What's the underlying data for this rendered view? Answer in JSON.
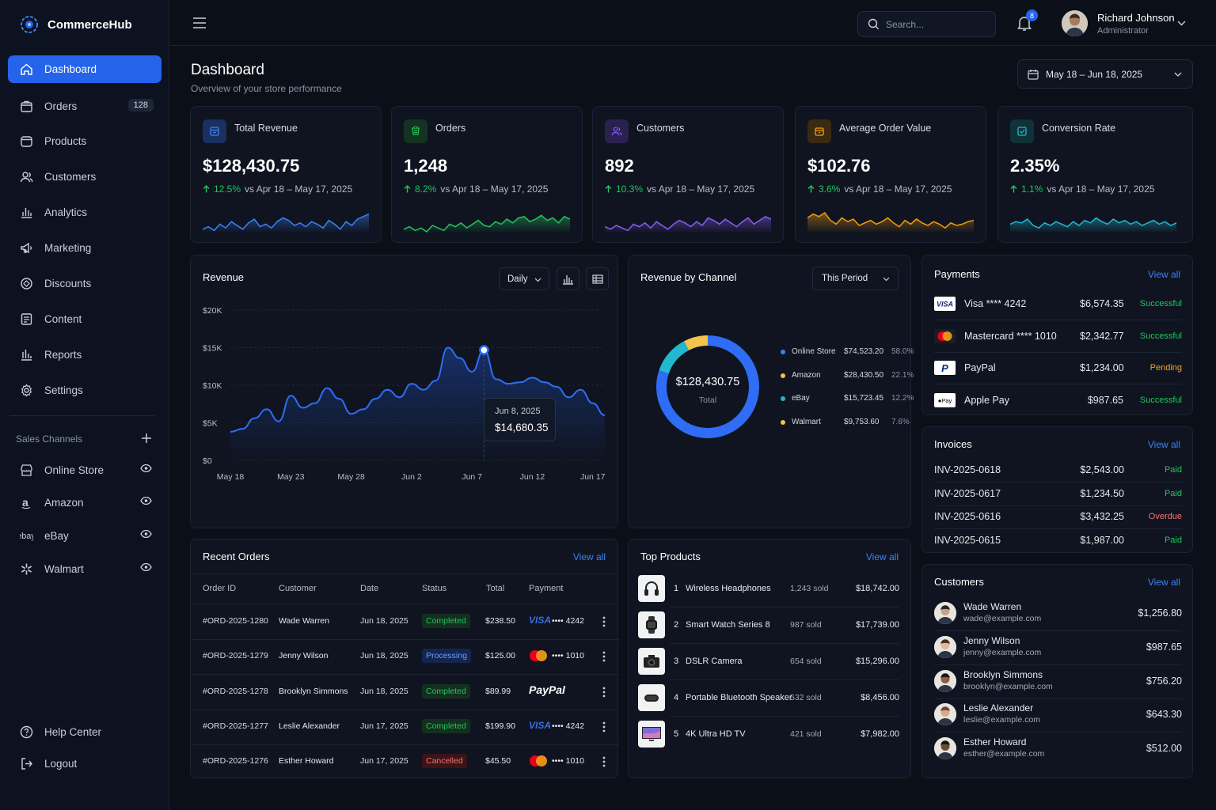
{
  "brand": {
    "name": "CommerceHub"
  },
  "sidebar": {
    "items": [
      {
        "label": "Dashboard",
        "icon": "home-icon"
      },
      {
        "label": "Orders",
        "icon": "bag-icon",
        "badge": "128"
      },
      {
        "label": "Products",
        "icon": "box-icon"
      },
      {
        "label": "Customers",
        "icon": "users-icon"
      },
      {
        "label": "Analytics",
        "icon": "bar-chart-icon"
      },
      {
        "label": "Marketing",
        "icon": "megaphone-icon"
      },
      {
        "label": "Discounts",
        "icon": "tag-icon"
      },
      {
        "label": "Content",
        "icon": "document-icon"
      },
      {
        "label": "Reports",
        "icon": "report-icon"
      },
      {
        "label": "Settings",
        "icon": "gear-icon"
      }
    ],
    "channels_title": "Sales Channels",
    "channels": [
      {
        "label": "Online Store"
      },
      {
        "label": "Amazon"
      },
      {
        "label": "eBay",
        "logo": "ebay"
      },
      {
        "label": "Walmart"
      }
    ],
    "help": "Help Center",
    "logout": "Logout"
  },
  "topbar": {
    "search_placeholder": "Search...",
    "notifications": "8",
    "user_name": "Richard Johnson",
    "user_role": "Administrator"
  },
  "page": {
    "title": "Dashboard",
    "subtitle": "Overview of your store performance",
    "date_range": "May 18 – Jun 18, 2025"
  },
  "kpis": [
    {
      "title": "Total Revenue",
      "value": "$128,430.75",
      "delta": "12.5%",
      "compare": "vs Apr 18 – May 17, 2025",
      "color": "#3b82f6"
    },
    {
      "title": "Orders",
      "value": "1,248",
      "delta": "8.2%",
      "compare": "vs Apr 18 – May 17, 2025",
      "color": "#22c55e"
    },
    {
      "title": "Customers",
      "value": "892",
      "delta": "10.3%",
      "compare": "vs Apr 18 – May 17, 2025",
      "color": "#8b5cf6"
    },
    {
      "title": "Average Order Value",
      "value": "$102.76",
      "delta": "3.6%",
      "compare": "vs Apr 18 – May 17, 2025",
      "color": "#f59e0b"
    },
    {
      "title": "Conversion Rate",
      "value": "2.35%",
      "delta": "1.1%",
      "compare": "vs Apr 18 – May 17, 2025",
      "color": "#22b8cf"
    }
  ],
  "revenue": {
    "title": "Revenue",
    "period": "Daily",
    "tooltip_date": "Jun 8, 2025",
    "tooltip_value": "$14,680.35"
  },
  "chart_data": {
    "type": "area",
    "x": [
      "May 18",
      "May 19",
      "May 20",
      "May 21",
      "May 22",
      "May 23",
      "May 24",
      "May 25",
      "May 26",
      "May 27",
      "May 28",
      "May 29",
      "May 30",
      "May 31",
      "Jun 1",
      "Jun 2",
      "Jun 3",
      "Jun 4",
      "Jun 5",
      "Jun 6",
      "Jun 7",
      "Jun 8",
      "Jun 9",
      "Jun 10",
      "Jun 11",
      "Jun 12",
      "Jun 13",
      "Jun 14",
      "Jun 15",
      "Jun 16",
      "Jun 17",
      "Jun 18"
    ],
    "series": [
      {
        "values": [
          3800,
          4200,
          5600,
          6800,
          5200,
          8600,
          7000,
          7600,
          9600,
          8200,
          6200,
          6800,
          8200,
          9400,
          8400,
          10200,
          9400,
          10600,
          15000,
          13600,
          11800,
          14680,
          10800,
          10200,
          10400,
          11000,
          10400,
          9800,
          8400,
          9400,
          7600,
          6000
        ]
      }
    ],
    "x_ticks": [
      "May 18",
      "May 23",
      "May 28",
      "Jun 2",
      "Jun 7",
      "Jun 12",
      "Jun 17"
    ],
    "y_ticks": [
      "$0",
      "$5K",
      "$10K",
      "$15K",
      "$20K"
    ],
    "ylim": [
      0,
      20000
    ],
    "grid": true
  },
  "channels_chart": {
    "title": "Revenue by Channel",
    "period": "This Period",
    "total": "$128,430.75",
    "total_label": "Total",
    "slices": [
      {
        "name": "Online Store",
        "value": "$74,523.20",
        "pct": "58.0%",
        "share": 58.0,
        "color": "#2f6df6"
      },
      {
        "name": "Amazon",
        "value": "$28,430.50",
        "pct": "22.1%",
        "share": 22.1,
        "color": "#2f6df6"
      },
      {
        "name": "eBay",
        "value": "$15,723.45",
        "pct": "12.2%",
        "share": 12.2,
        "color": "#22b8cf"
      },
      {
        "name": "Walmart",
        "value": "$9,753.60",
        "pct": "7.6%",
        "share": 7.6,
        "color": "#f5c24b"
      }
    ],
    "legend_colors": [
      "#3b82f6",
      "#f5c24b",
      "#22b8cf",
      "#f5c24b"
    ]
  },
  "payments": {
    "title": "Payments",
    "view_all": "View all",
    "rows": [
      {
        "method": "Visa **** 4242",
        "amount": "$6,574.35",
        "status": "Successful",
        "logo": "VISA"
      },
      {
        "method": "Mastercard **** 1010",
        "amount": "$2,342.77",
        "status": "Successful",
        "logo": "mastercard"
      },
      {
        "method": "PayPal",
        "amount": "$1,234.00",
        "status": "Pending",
        "logo": "P"
      },
      {
        "method": "Apple Pay",
        "amount": "$987.65",
        "status": "Successful",
        "logo": "Pay"
      }
    ]
  },
  "invoices": {
    "title": "Invoices",
    "view_all": "View all",
    "rows": [
      {
        "id": "INV-2025-0618",
        "amount": "$2,543.00",
        "status": "Paid"
      },
      {
        "id": "INV-2025-0617",
        "amount": "$1,234.50",
        "status": "Paid"
      },
      {
        "id": "INV-2025-0616",
        "amount": "$3,432.25",
        "status": "Overdue"
      },
      {
        "id": "INV-2025-0615",
        "amount": "$1,987.00",
        "status": "Paid"
      }
    ]
  },
  "customers_panel": {
    "title": "Customers",
    "view_all": "View all",
    "rows": [
      {
        "name": "Wade Warren",
        "email": "wade@example.com",
        "amount": "$1,256.80"
      },
      {
        "name": "Jenny Wilson",
        "email": "jenny@example.com",
        "amount": "$987.65"
      },
      {
        "name": "Brooklyn Simmons",
        "email": "brooklyn@example.com",
        "amount": "$756.20"
      },
      {
        "name": "Leslie Alexander",
        "email": "leslie@example.com",
        "amount": "$643.30"
      },
      {
        "name": "Esther Howard",
        "email": "esther@example.com",
        "amount": "$512.00"
      }
    ]
  },
  "orders": {
    "title": "Recent Orders",
    "view_all": "View all",
    "columns": [
      "Order ID",
      "Customer",
      "Date",
      "Status",
      "Total",
      "Payment"
    ],
    "rows": [
      {
        "id": "#ORD-2025-1280",
        "customer": "Wade Warren",
        "date": "Jun 18, 2025",
        "status": "Completed",
        "total": "$238.50",
        "pay_brand": "VISA",
        "pay_last": "•••• 4242"
      },
      {
        "id": "#ORD-2025-1279",
        "customer": "Jenny Wilson",
        "date": "Jun 18, 2025",
        "status": "Processing",
        "total": "$125.00",
        "pay_brand": "mastercard",
        "pay_last": "•••• 1010"
      },
      {
        "id": "#ORD-2025-1278",
        "customer": "Brooklyn Simmons",
        "date": "Jun 18, 2025",
        "status": "Completed",
        "total": "$89.99",
        "pay_brand": "PayPal",
        "pay_last": ""
      },
      {
        "id": "#ORD-2025-1277",
        "customer": "Leslie Alexander",
        "date": "Jun 17, 2025",
        "status": "Completed",
        "total": "$199.90",
        "pay_brand": "VISA",
        "pay_last": "•••• 4242"
      },
      {
        "id": "#ORD-2025-1276",
        "customer": "Esther Howard",
        "date": "Jun 17, 2025",
        "status": "Cancelled",
        "total": "$45.50",
        "pay_brand": "mastercard",
        "pay_last": "•••• 1010"
      }
    ]
  },
  "top_products": {
    "title": "Top Products",
    "view_all": "View all",
    "rows": [
      {
        "rank": "1",
        "name": "Wireless Headphones",
        "sold": "1,243 sold",
        "revenue": "$18,742.00"
      },
      {
        "rank": "2",
        "name": "Smart Watch Series 8",
        "sold": "987 sold",
        "revenue": "$17,739.00"
      },
      {
        "rank": "3",
        "name": "DSLR Camera",
        "sold": "654 sold",
        "revenue": "$15,296.00"
      },
      {
        "rank": "4",
        "name": "Portable Bluetooth Speaker",
        "sold": "532 sold",
        "revenue": "$8,456.00"
      },
      {
        "rank": "5",
        "name": "4K Ultra HD TV",
        "sold": "421 sold",
        "revenue": "$7,982.00"
      }
    ]
  }
}
